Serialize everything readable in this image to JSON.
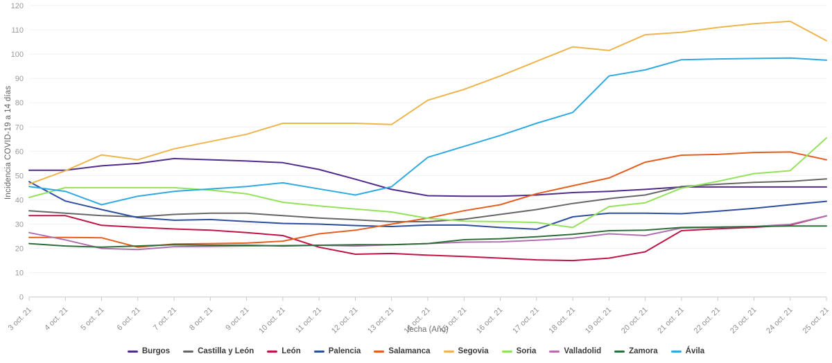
{
  "chart_data": {
    "type": "line",
    "title": "",
    "xlabel": "fecha (Año)",
    "ylabel": "Incidencia COVID-19 a 14 días",
    "ylim": [
      0,
      120
    ],
    "ytick_step": 10,
    "grid": true,
    "legend_position": "bottom",
    "categories": [
      "3 oct. 21",
      "4 oct. 21",
      "5 oct. 21",
      "6 oct. 21",
      "7 oct. 21",
      "8 oct. 21",
      "9 oct. 21",
      "10 oct. 21",
      "11 oct. 21",
      "12 oct. 21",
      "13 oct. 21",
      "14 oct. 21",
      "15 oct. 21",
      "16 oct. 21",
      "17 oct. 21",
      "18 oct. 21",
      "19 oct. 21",
      "20 oct. 21",
      "21 oct. 21",
      "22 oct. 21",
      "23 oct. 21",
      "24 oct. 21",
      "25 oct. 21"
    ],
    "series": [
      {
        "name": "Burgos",
        "color": "#512b8b",
        "values": [
          52.2,
          52.2,
          54,
          55,
          57,
          56.5,
          56,
          55.3,
          52.5,
          48.5,
          44.3,
          41.7,
          41.5,
          41.5,
          42,
          43,
          43.5,
          44.3,
          45.3,
          45.3,
          45.3,
          45.3,
          45.3
        ]
      },
      {
        "name": "Castilla y León",
        "color": "#666666",
        "values": [
          35.5,
          34.5,
          33.5,
          33,
          34,
          34.5,
          34.5,
          33.5,
          32.5,
          31.8,
          31,
          31,
          32,
          34,
          36,
          38.5,
          40.5,
          42,
          45.5,
          46.4,
          47.2,
          47.6,
          48.6
        ]
      },
      {
        "name": "León",
        "color": "#c01445",
        "values": [
          33.5,
          33.5,
          29.5,
          28.7,
          28,
          27.5,
          26.5,
          25.3,
          20.5,
          17.6,
          17.9,
          17.2,
          16.7,
          16,
          15.3,
          15,
          16,
          18.6,
          27.3,
          28.1,
          28.7,
          29.6,
          33.4
        ]
      },
      {
        "name": "Palencia",
        "color": "#2e4d9e",
        "values": [
          47.5,
          39.5,
          36,
          32.7,
          31.6,
          31.9,
          31.1,
          30.3,
          30,
          29.4,
          29,
          29.6,
          29.6,
          28.6,
          27.9,
          33,
          34.5,
          34.5,
          34.3,
          35.3,
          36.5,
          38,
          39.4
        ]
      },
      {
        "name": "Salamanca",
        "color": "#e55e1e",
        "values": [
          24.5,
          24.5,
          24.4,
          20.5,
          21.8,
          22,
          22.2,
          23,
          26,
          27.5,
          30,
          32.5,
          35.5,
          38,
          42.5,
          45.8,
          49,
          55.5,
          58.4,
          58.7,
          59.5,
          59.7,
          56.5
        ]
      },
      {
        "name": "Segovia",
        "color": "#eeb54d",
        "values": [
          46.5,
          52,
          58.5,
          56.5,
          61,
          64,
          67,
          71.5,
          71.5,
          71.5,
          71,
          81,
          85.5,
          91,
          97,
          103,
          101.5,
          108,
          109,
          111,
          112.5,
          113.5,
          105.5
        ]
      },
      {
        "name": "Soria",
        "color": "#94e25a",
        "values": [
          41,
          45,
          45,
          45,
          45,
          44,
          42.5,
          39,
          37.5,
          36.2,
          35,
          32.4,
          31.2,
          31,
          30.7,
          28.6,
          37.2,
          38.8,
          44.8,
          47.6,
          50.8,
          52,
          65.5
        ]
      },
      {
        "name": "Valladolid",
        "color": "#b06fae",
        "values": [
          26.5,
          23.5,
          20,
          19.5,
          20.7,
          20.8,
          21,
          21.2,
          21.3,
          21,
          21.5,
          22,
          22.6,
          22.7,
          23.4,
          24.2,
          26,
          25.3,
          28.4,
          28.7,
          29,
          29.9,
          33.4
        ]
      },
      {
        "name": "Zamora",
        "color": "#2f6e3a",
        "values": [
          22,
          21,
          20.5,
          21,
          21.5,
          21.3,
          21.3,
          21,
          21.3,
          21.5,
          21.5,
          22,
          23.6,
          24,
          24.8,
          25.8,
          27.3,
          27.5,
          28.6,
          28.8,
          29,
          29.2,
          29.2
        ]
      },
      {
        "name": "Ávila",
        "color": "#2fa9e2",
        "values": [
          45.5,
          43.5,
          38,
          41.5,
          43.5,
          44.5,
          45.5,
          47,
          44.5,
          42,
          45.4,
          57.5,
          62,
          66.5,
          71.5,
          76,
          91,
          93.5,
          97.7,
          98,
          98.2,
          98.4,
          97.5
        ]
      }
    ],
    "style": {
      "grid_color": "#f0f0f0",
      "axis_color": "#c9c9c9",
      "ytick_color": "#999999",
      "xtick_color": "#8f8f8f"
    }
  }
}
